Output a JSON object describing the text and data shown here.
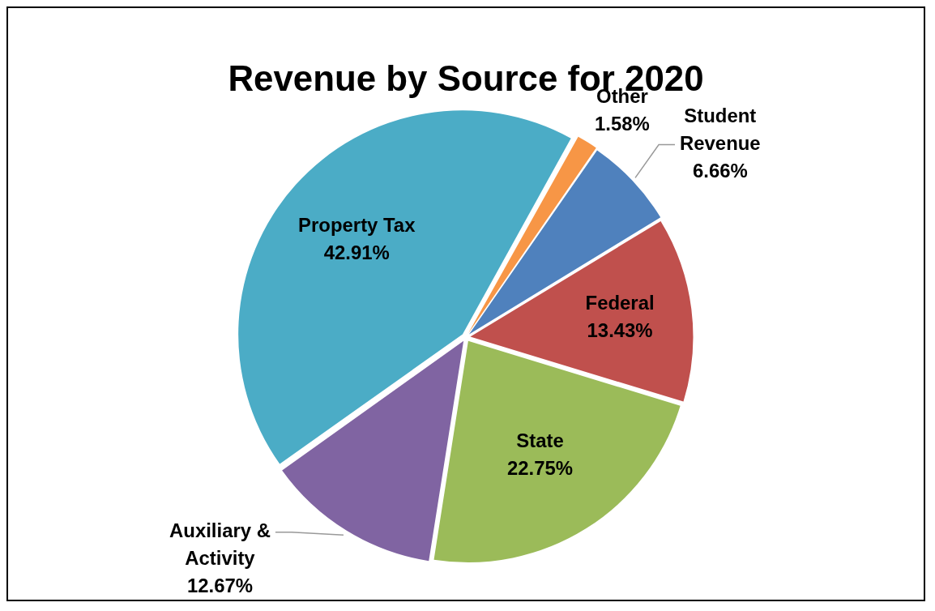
{
  "chart_data": {
    "type": "pie",
    "title": "Revenue by Source for 2020",
    "categories": [
      "Other",
      "Student Revenue",
      "Federal",
      "State",
      "Auxiliary & Activity",
      "Property Tax"
    ],
    "values": [
      1.58,
      6.66,
      13.43,
      22.75,
      12.67,
      42.91
    ],
    "value_labels": [
      "1.58%",
      "6.66%",
      "13.43%",
      "22.75%",
      "12.67%",
      "42.91%"
    ],
    "colors": [
      "#f79646",
      "#4f81bd",
      "#c0504d",
      "#9bbb59",
      "#8064a2",
      "#4bacc6"
    ],
    "legend": false
  }
}
